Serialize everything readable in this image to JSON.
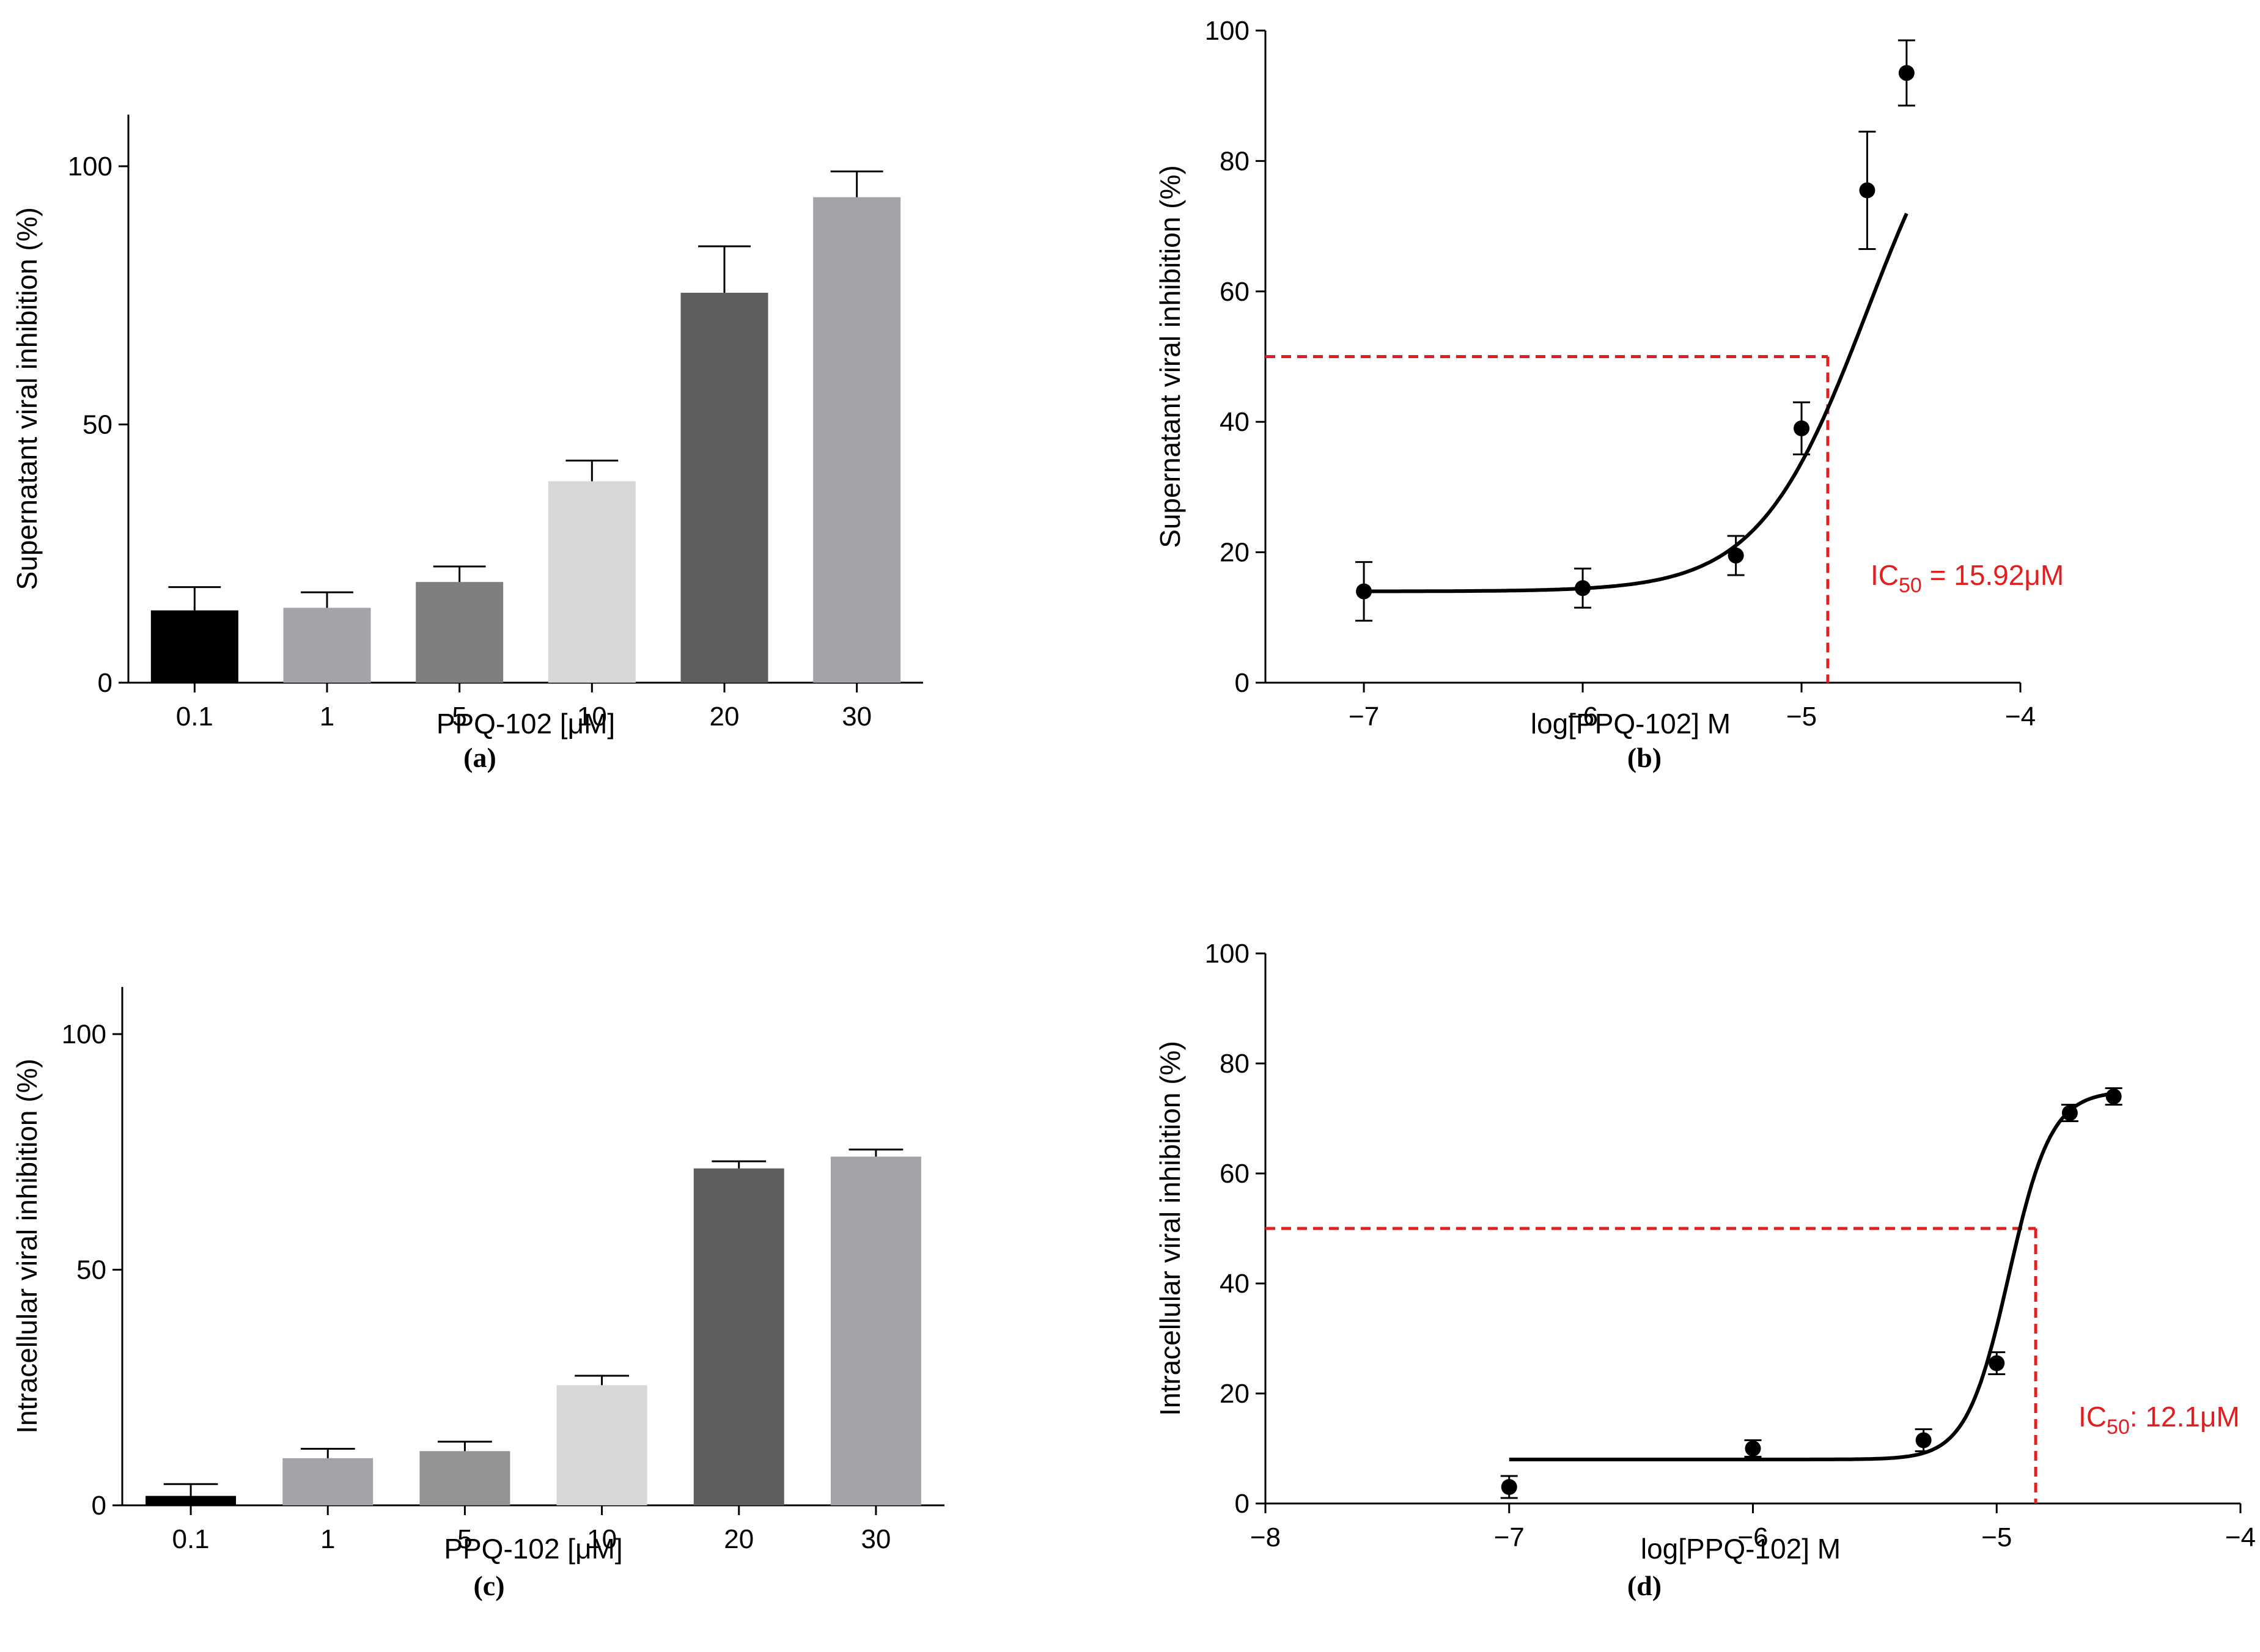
{
  "chart_data": [
    {
      "id": "a",
      "type": "bar",
      "panel_label": "(a)",
      "xlabel": "PPQ-102 [μM]",
      "ylabel": "Supernatant viral inhibition (%)",
      "categories": [
        "0.1",
        "1",
        "5",
        "10",
        "20",
        "30"
      ],
      "values": [
        14,
        14.5,
        19.5,
        39,
        75.5,
        94
      ],
      "errors": [
        4.5,
        3,
        3,
        4,
        9,
        5
      ],
      "colors": [
        "#000000",
        "#a3a3a8",
        "#7f7f7f",
        "#d7d7d7",
        "#5e5e5e",
        "#a3a3a8"
      ],
      "ylim": [
        0,
        110
      ],
      "yticks": [
        0,
        50,
        100
      ]
    },
    {
      "id": "b",
      "type": "scatter",
      "panel_label": "(b)",
      "xlabel": "log[PPQ-102] M",
      "ylabel": "Supernatant viral inhibition (%)",
      "x": [
        -7,
        -6,
        -5.3,
        -5,
        -4.7,
        -4.52
      ],
      "y": [
        14,
        14.5,
        19.5,
        39,
        75.5,
        93.5
      ],
      "errors": [
        4.5,
        3,
        3,
        4,
        9,
        5
      ],
      "fit": {
        "bottom": 14,
        "top": 100,
        "logIC50": -4.7,
        "hill": 1.75,
        "x_range": [
          -7,
          -4.52
        ]
      },
      "xlim": [
        -7.45,
        -4
      ],
      "xticks": [
        -7,
        -6,
        -5,
        -4
      ],
      "ylim": [
        0,
        100
      ],
      "yticks": [
        0,
        20,
        40,
        60,
        80,
        100
      ],
      "ic50": {
        "x": -4.88,
        "y": 50,
        "label_main": "IC",
        "label_sub": "50",
        "label_rest": " = 15.92μM"
      }
    },
    {
      "id": "c",
      "type": "bar",
      "panel_label": "(c)",
      "xlabel": "PPQ-102 [μM]",
      "ylabel": "Intracellular viral inhibition (%)",
      "categories": [
        "0.1",
        "1",
        "5",
        "10",
        "20",
        "30"
      ],
      "values": [
        2,
        10,
        11.5,
        25.5,
        71.5,
        74
      ],
      "errors": [
        2.5,
        2,
        2,
        2,
        1.5,
        1.5
      ],
      "colors": [
        "#000000",
        "#a3a3a8",
        "#939393",
        "#d7d7d7",
        "#5e5e5e",
        "#a3a3a8"
      ],
      "ylim": [
        0,
        110
      ],
      "yticks": [
        0,
        50,
        100
      ]
    },
    {
      "id": "d",
      "type": "scatter",
      "panel_label": "(d)",
      "xlabel": "log[PPQ-102] M",
      "ylabel": "Intracellular viral inhibition (%)",
      "x": [
        -7,
        -6,
        -5.3,
        -5,
        -4.7,
        -4.52
      ],
      "y": [
        3,
        10,
        11.5,
        25.5,
        71,
        74
      ],
      "errors": [
        2,
        1.5,
        2,
        2,
        1.5,
        1.5
      ],
      "fit": {
        "bottom": 8,
        "top": 75,
        "logIC50": -4.95,
        "hill": 5,
        "x_range": [
          -7,
          -4.52
        ]
      },
      "xlim": [
        -8,
        -4
      ],
      "xticks": [
        -8,
        -7,
        -6,
        -5,
        -4
      ],
      "ylim": [
        0,
        100
      ],
      "yticks": [
        0,
        20,
        40,
        60,
        80,
        100
      ],
      "ic50": {
        "x": -4.84,
        "y": 50,
        "label_main": "IC",
        "label_sub": "50",
        "label_rest": ": 12.1μM"
      }
    }
  ]
}
